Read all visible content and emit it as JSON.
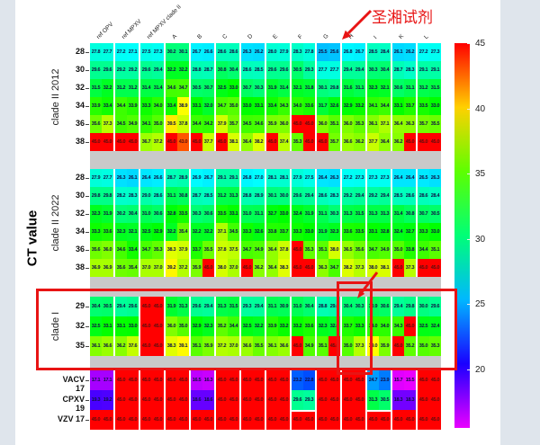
{
  "annotation": {
    "reagent_label": "圣湘试剂",
    "highlight_color": "#e81414",
    "red_box_highlights": [
      {
        "target": "clade I rows (29, 32, 35)"
      },
      {
        "target": "column H within clade I rows"
      }
    ]
  },
  "chart_data": {
    "type": "heatmap",
    "title": "",
    "ylabel": "CT value",
    "colormap": "hsv",
    "vmin": 15.5,
    "vmax": 45,
    "colorbar_ticks": [
      45,
      40,
      35,
      30,
      25,
      20
    ],
    "replicates_per_column": 2,
    "columns": [
      "ref OPV",
      "ref MPXV",
      "ref MPXV clade II",
      "A",
      "B",
      "C",
      "D",
      "E",
      "F",
      "G",
      "H",
      "I",
      "K",
      "L"
    ],
    "white_box_highlights": {
      "columns": [
        "F",
        "I"
      ],
      "rows": [
        "VACV 17",
        "CPXV 19"
      ]
    },
    "row_blocks": [
      {
        "group": "clade II 2012",
        "rows": [
          {
            "label": "28",
            "values": [
              27.8,
              27.7,
              27.2,
              27.1,
              27.5,
              27.3,
              30.2,
              30.1,
              26.7,
              26.6,
              28.6,
              28.6,
              26.3,
              26.2,
              28.0,
              27.9,
              28.3,
              27.8,
              25.5,
              25.6,
              26.8,
              26.7,
              28.5,
              28.4,
              26.1,
              26.2,
              27.2,
              27.3
            ]
          },
          {
            "label": "30",
            "values": [
              29.6,
              29.6,
              29.2,
              29.2,
              29.6,
              29.4,
              32.2,
              32.2,
              28.8,
              28.7,
              30.8,
              30.4,
              28.6,
              28.5,
              29.6,
              29.6,
              30.5,
              29.3,
              27.7,
              27.7,
              29.4,
              29.4,
              30.3,
              30.4,
              28.7,
              28.3,
              29.1,
              29.1
            ]
          },
          {
            "label": "32",
            "values": [
              31.5,
              32.2,
              31.2,
              31.2,
              31.4,
              31.4,
              34.6,
              34.7,
              30.5,
              30.7,
              32.5,
              33.0,
              30.7,
              30.3,
              31.9,
              31.4,
              32.1,
              31.8,
              30.1,
              29.8,
              31.6,
              31.1,
              32.3,
              32.1,
              30.6,
              31.1,
              31.2,
              31.5
            ]
          },
          {
            "label": "34",
            "values": [
              33.9,
              33.4,
              34.4,
              33.9,
              33.3,
              34.0,
              33.4,
              38.9,
              33.1,
              32.0,
              34.7,
              35.0,
              33.0,
              33.1,
              33.4,
              34.3,
              34.0,
              33.6,
              31.7,
              32.6,
              32.9,
              33.2,
              34.1,
              34.4,
              33.1,
              33.7,
              33.5,
              33.0
            ]
          },
          {
            "label": "36",
            "values": [
              35.6,
              37.3,
              34.5,
              34.9,
              34.1,
              35.0,
              39.5,
              37.8,
              34.4,
              34.2,
              37.9,
              35.7,
              34.5,
              34.6,
              35.9,
              36.0,
              45.0,
              45.0,
              36.0,
              35.1,
              36.0,
              35.3,
              36.1,
              37.1,
              36.4,
              36.3,
              35.7,
              35.5
            ]
          },
          {
            "label": "38",
            "values": [
              45.0,
              45.0,
              45.0,
              45.0,
              36.7,
              37.2,
              45.0,
              43.0,
              45.0,
              37.7,
              45.0,
              38.1,
              36.4,
              38.2,
              45.0,
              37.4,
              35.3,
              45.0,
              45.0,
              35.7,
              36.6,
              36.2,
              37.7,
              36.4,
              36.2,
              45.0,
              45.0,
              45.0
            ]
          }
        ]
      },
      {
        "group": "clade II 2022",
        "rows": [
          {
            "label": "28",
            "values": [
              27.9,
              27.7,
              26.3,
              26.1,
              26.4,
              26.6,
              28.7,
              28.9,
              26.9,
              26.7,
              29.1,
              29.1,
              26.8,
              27.0,
              28.1,
              28.1,
              27.9,
              27.5,
              26.4,
              26.3,
              27.2,
              27.3,
              27.3,
              27.3,
              26.4,
              26.4,
              26.5,
              26.3
            ]
          },
          {
            "label": "30",
            "values": [
              29.8,
              29.8,
              28.2,
              28.3,
              29.0,
              28.6,
              31.1,
              30.8,
              28.7,
              28.5,
              31.2,
              31.3,
              28.8,
              28.9,
              30.1,
              30.0,
              29.6,
              29.4,
              28.6,
              28.3,
              29.2,
              29.4,
              29.2,
              29.4,
              28.5,
              28.6,
              28.6,
              28.4
            ]
          },
          {
            "label": "32",
            "values": [
              32.3,
              31.9,
              30.2,
              30.4,
              31.0,
              30.6,
              32.8,
              33.5,
              30.3,
              30.6,
              33.5,
              33.1,
              31.0,
              31.1,
              32.7,
              33.0,
              32.4,
              31.9,
              31.1,
              30.3,
              31.3,
              31.5,
              31.3,
              31.3,
              31.4,
              30.8,
              30.7,
              30.5
            ]
          },
          {
            "label": "34",
            "values": [
              33.3,
              33.6,
              32.3,
              32.1,
              32.5,
              32.9,
              32.2,
              35.4,
              32.2,
              32.2,
              37.1,
              34.5,
              33.3,
              32.6,
              33.8,
              33.7,
              33.3,
              33.0,
              31.9,
              32.3,
              33.6,
              33.5,
              33.1,
              32.8,
              32.4,
              32.7,
              33.3,
              33.0
            ]
          },
          {
            "label": "36",
            "values": [
              35.6,
              36.0,
              34.6,
              33.4,
              34.7,
              35.3,
              38.3,
              37.9,
              33.7,
              35.5,
              37.8,
              37.5,
              34.7,
              34.9,
              36.4,
              37.8,
              45.0,
              35.3,
              35.1,
              38.0,
              36.5,
              35.6,
              34.7,
              34.9,
              35.0,
              33.8,
              34.4,
              35.1
            ]
          },
          {
            "label": "38",
            "values": [
              36.9,
              36.9,
              35.6,
              35.4,
              37.0,
              37.0,
              39.2,
              37.2,
              35.9,
              45.0,
              38.0,
              37.0,
              45.0,
              36.2,
              36.4,
              38.3,
              45.0,
              45.0,
              36.3,
              34.7,
              38.2,
              37.3,
              38.0,
              38.1,
              45.0,
              37.3,
              45.0,
              45.0
            ]
          }
        ]
      },
      {
        "group": "clade I",
        "rows": [
          {
            "label": "29",
            "values": [
              30.4,
              30.5,
              29.4,
              29.6,
              45.0,
              45.0,
              31.9,
              31.3,
              29.6,
              29.4,
              31.3,
              31.5,
              29.3,
              29.4,
              31.1,
              30.9,
              31.0,
              30.4,
              28.8,
              29.0,
              30.4,
              30.3,
              30.9,
              30.6,
              29.4,
              29.8,
              30.0,
              29.6
            ]
          },
          {
            "label": "32",
            "values": [
              32.5,
              33.1,
              33.1,
              33.0,
              45.0,
              45.0,
              36.0,
              35.0,
              32.9,
              32.3,
              35.2,
              34.4,
              32.5,
              32.2,
              33.9,
              33.2,
              33.2,
              33.6,
              32.3,
              32.0,
              33.7,
              33.3,
              34.0,
              34.0,
              34.3,
              45.0,
              32.5,
              32.4
            ]
          },
          {
            "label": "35",
            "values": [
              36.1,
              36.6,
              36.2,
              37.6,
              45.0,
              45.0,
              38.3,
              39.1,
              35.1,
              35.9,
              37.2,
              37.0,
              36.6,
              35.5,
              36.1,
              36.6,
              45.0,
              34.9,
              35.1,
              45.0,
              35.0,
              37.3,
              39.0,
              35.9,
              45.0,
              35.2,
              35.0,
              35.3
            ]
          }
        ]
      },
      {
        "group": "",
        "rows": [
          {
            "label": "VACV 17",
            "values": [
              17.1,
              17.1,
              45.0,
              45.0,
              45.0,
              45.0,
              45.0,
              45.0,
              16.5,
              16.3,
              45.0,
              45.0,
              45.0,
              45.0,
              45.0,
              45.0,
              23.2,
              22.8,
              45.0,
              45.0,
              45.0,
              45.0,
              24.7,
              23.9,
              15.7,
              15.5,
              45.0,
              45.0
            ]
          },
          {
            "label": "CPXV 19",
            "values": [
              19.3,
              19.2,
              45.0,
              45.0,
              45.0,
              45.0,
              45.0,
              45.0,
              18.6,
              18.6,
              45.0,
              45.0,
              45.0,
              45.0,
              45.0,
              45.0,
              29.6,
              29.3,
              45.0,
              45.0,
              45.0,
              45.0,
              31.3,
              30.5,
              18.3,
              18.3,
              45.0,
              45.0
            ]
          },
          {
            "label": "VZV 17",
            "values": [
              45.0,
              45.0,
              45.0,
              45.0,
              45.0,
              45.0,
              45.0,
              45.0,
              45.0,
              45.0,
              45.0,
              45.0,
              45.0,
              45.0,
              45.0,
              45.0,
              45.0,
              45.0,
              45.0,
              45.0,
              45.0,
              45.0,
              45.0,
              45.0,
              45.0,
              45.0,
              45.0,
              45.0
            ]
          }
        ]
      }
    ]
  }
}
